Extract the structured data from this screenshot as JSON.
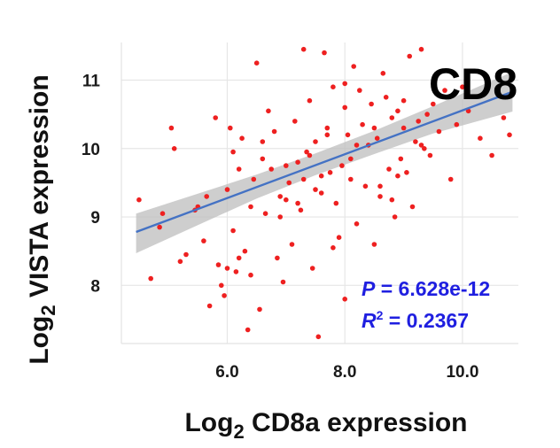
{
  "chart_data": {
    "type": "scatter",
    "title": "",
    "corner_label": "CD8",
    "xlabel": {
      "prefix": "Log",
      "subscript": "2",
      "suffix": " CD8a expression"
    },
    "ylabel": {
      "prefix": "Log",
      "subscript": "2",
      "suffix": " VISTA expression"
    },
    "xlim": [
      4.2,
      10.95
    ],
    "ylim": [
      7.15,
      11.55
    ],
    "x_ticks": [
      6.0,
      8.0,
      10.0
    ],
    "x_tick_labels": [
      "6.0",
      "8.0",
      "10.0"
    ],
    "y_ticks": [
      8,
      9,
      10,
      11
    ],
    "y_tick_labels": [
      "8",
      "9",
      "10",
      "11"
    ],
    "grid": true,
    "colors": {
      "points": "#ee2020",
      "fit_line": "#4472c4",
      "confidence_band": "#bdbdbd",
      "stats_text": "#1f1fe0",
      "grid": "#e6e6e6"
    },
    "fit": {
      "x": [
        4.45,
        10.85
      ],
      "y": [
        8.78,
        10.83
      ]
    },
    "confidence_band": {
      "x": [
        4.45,
        5.5,
        6.5,
        7.5,
        8.5,
        9.5,
        10.85
      ],
      "upper": [
        9.05,
        9.34,
        9.62,
        9.93,
        10.26,
        10.62,
        11.12
      ],
      "lower": [
        8.47,
        8.88,
        9.27,
        9.61,
        9.92,
        10.22,
        10.54
      ]
    },
    "stats": {
      "p_label": "P",
      "p_value": " = 6.628e-12",
      "r2_label": "R",
      "r2_sup": "2",
      "r2_value": " = 0.2367"
    },
    "points": {
      "x": [
        4.5,
        4.7,
        4.85,
        4.9,
        5.05,
        5.1,
        5.2,
        5.3,
        5.45,
        5.5,
        5.6,
        5.65,
        5.7,
        5.8,
        5.85,
        5.9,
        5.95,
        6.0,
        6.0,
        6.05,
        6.1,
        6.1,
        6.15,
        6.2,
        6.25,
        6.3,
        6.35,
        6.4,
        6.45,
        6.5,
        6.55,
        6.6,
        6.65,
        6.7,
        6.75,
        6.8,
        6.85,
        6.9,
        6.95,
        7.0,
        7.05,
        7.1,
        7.15,
        7.2,
        7.25,
        7.3,
        7.35,
        7.4,
        7.45,
        7.5,
        7.5,
        7.55,
        7.6,
        7.65,
        7.7,
        7.75,
        7.8,
        7.85,
        7.9,
        7.95,
        8.0,
        8.0,
        8.05,
        8.1,
        8.15,
        8.2,
        8.25,
        8.3,
        8.35,
        8.4,
        8.45,
        8.5,
        8.55,
        8.6,
        8.65,
        8.7,
        8.75,
        8.8,
        8.85,
        8.9,
        8.95,
        9.0,
        9.05,
        9.1,
        9.15,
        9.2,
        9.25,
        9.3,
        9.35,
        9.4,
        9.45,
        9.5,
        9.6,
        9.7,
        9.8,
        9.9,
        10.0,
        10.1,
        10.3,
        10.5,
        10.7,
        10.8,
        6.2,
        6.6,
        7.0,
        7.4,
        7.8,
        8.2,
        8.6,
        9.0,
        6.9,
        7.3,
        7.7,
        8.1,
        8.5,
        8.9,
        9.3,
        6.4,
        7.6,
        8.8,
        7.2,
        8.0
      ],
      "y": [
        9.25,
        8.1,
        8.85,
        9.05,
        10.3,
        10.0,
        8.35,
        8.45,
        9.1,
        9.15,
        8.65,
        9.3,
        7.7,
        10.45,
        8.3,
        8.0,
        7.85,
        8.25,
        9.4,
        10.3,
        9.95,
        8.8,
        8.2,
        9.7,
        10.15,
        8.5,
        7.35,
        9.15,
        9.55,
        11.25,
        7.65,
        9.85,
        9.05,
        10.55,
        9.7,
        10.25,
        8.4,
        9.3,
        8.05,
        9.75,
        9.5,
        8.6,
        10.4,
        9.8,
        9.1,
        11.45,
        9.95,
        10.7,
        8.25,
        9.4,
        10.1,
        7.25,
        9.6,
        11.4,
        10.3,
        9.65,
        10.9,
        9.2,
        8.7,
        9.75,
        10.6,
        7.8,
        10.2,
        9.55,
        11.2,
        8.9,
        10.85,
        10.35,
        9.45,
        10.05,
        10.65,
        8.6,
        10.15,
        9.3,
        11.1,
        10.75,
        9.7,
        10.45,
        9.0,
        10.55,
        9.85,
        10.3,
        9.65,
        11.35,
        9.15,
        10.1,
        10.4,
        11.45,
        10.0,
        10.5,
        9.9,
        10.65,
        10.25,
        10.85,
        9.55,
        10.35,
        10.9,
        10.55,
        10.15,
        9.9,
        10.45,
        10.2,
        8.4,
        10.1,
        9.25,
        9.9,
        8.55,
        10.05,
        9.45,
        10.7,
        9.0,
        9.55,
        10.2,
        9.85,
        10.3,
        9.6,
        10.05,
        8.15,
        9.35,
        9.25,
        9.2,
        10.95
      ]
    }
  }
}
